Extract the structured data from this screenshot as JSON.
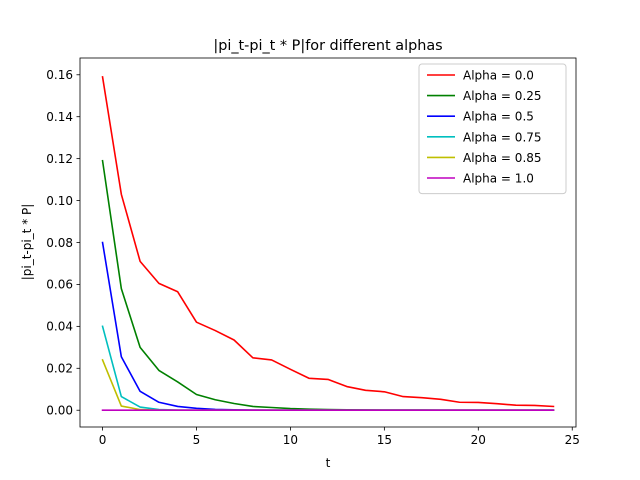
{
  "chart_data": {
    "type": "line",
    "title": "|pi_t-pi_t * P|for different alphas",
    "xlabel": "t",
    "ylabel": "|pi_t-pi_t * P|",
    "xlim": [
      -1.2,
      25.2
    ],
    "ylim": [
      -0.008,
      0.168
    ],
    "xticks": [
      0,
      5,
      10,
      15,
      20,
      25
    ],
    "yticks": [
      0.0,
      0.02,
      0.04,
      0.06,
      0.08,
      0.1,
      0.12,
      0.14,
      0.16
    ],
    "ytick_decimals": 2,
    "grid": false,
    "legend_position": "top-right",
    "x": [
      0,
      1,
      2,
      3,
      4,
      5,
      6,
      7,
      8,
      9,
      10,
      11,
      12,
      13,
      14,
      15,
      16,
      17,
      18,
      19,
      20,
      21,
      22,
      23,
      24
    ],
    "series": [
      {
        "name": "Alpha = 0.0",
        "color": "#ff0000",
        "values": [
          0.159,
          0.103,
          0.071,
          0.0605,
          0.0565,
          0.042,
          0.038,
          0.0335,
          0.025,
          0.024,
          0.0195,
          0.0152,
          0.0147,
          0.0113,
          0.0095,
          0.0088,
          0.0065,
          0.006,
          0.0052,
          0.0038,
          0.0037,
          0.0031,
          0.0024,
          0.0023,
          0.0018
        ]
      },
      {
        "name": "Alpha = 0.25",
        "color": "#008000",
        "values": [
          0.119,
          0.058,
          0.03,
          0.019,
          0.0135,
          0.0075,
          0.005,
          0.0032,
          0.0018,
          0.0013,
          0.0008,
          0.0005,
          0.0003,
          0.0002,
          0.00015,
          0.0001,
          8e-05,
          6e-05,
          4e-05,
          3e-05,
          2e-05,
          2e-05,
          1e-05,
          1e-05,
          1e-05
        ]
      },
      {
        "name": "Alpha = 0.5",
        "color": "#0000ff",
        "values": [
          0.08,
          0.0255,
          0.009,
          0.0038,
          0.0018,
          0.0009,
          0.0004,
          0.0002,
          0.0001,
          5e-05,
          2e-05,
          1e-05,
          0,
          0,
          0,
          0,
          0,
          0,
          0,
          0,
          0,
          0,
          0,
          0,
          0
        ]
      },
      {
        "name": "Alpha = 0.75",
        "color": "#00bfbf",
        "values": [
          0.04,
          0.0065,
          0.0015,
          0.0003,
          0.0001,
          2e-05,
          0,
          0,
          0,
          0,
          0,
          0,
          0,
          0,
          0,
          0,
          0,
          0,
          0,
          0,
          0,
          0,
          0,
          0,
          0
        ]
      },
      {
        "name": "Alpha = 0.85",
        "color": "#bfbf00",
        "values": [
          0.024,
          0.002,
          0.0003,
          3e-05,
          0,
          0,
          0,
          0,
          0,
          0,
          0,
          0,
          0,
          0,
          0,
          0,
          0,
          0,
          0,
          0,
          0,
          0,
          0,
          0,
          0
        ]
      },
      {
        "name": "Alpha = 1.0",
        "color": "#bf00bf",
        "values": [
          0,
          0,
          0,
          0,
          0,
          0,
          0,
          0,
          0,
          0,
          0,
          0,
          0,
          0,
          0,
          0,
          0,
          0,
          0,
          0,
          0,
          0,
          0,
          0,
          0
        ]
      }
    ]
  }
}
